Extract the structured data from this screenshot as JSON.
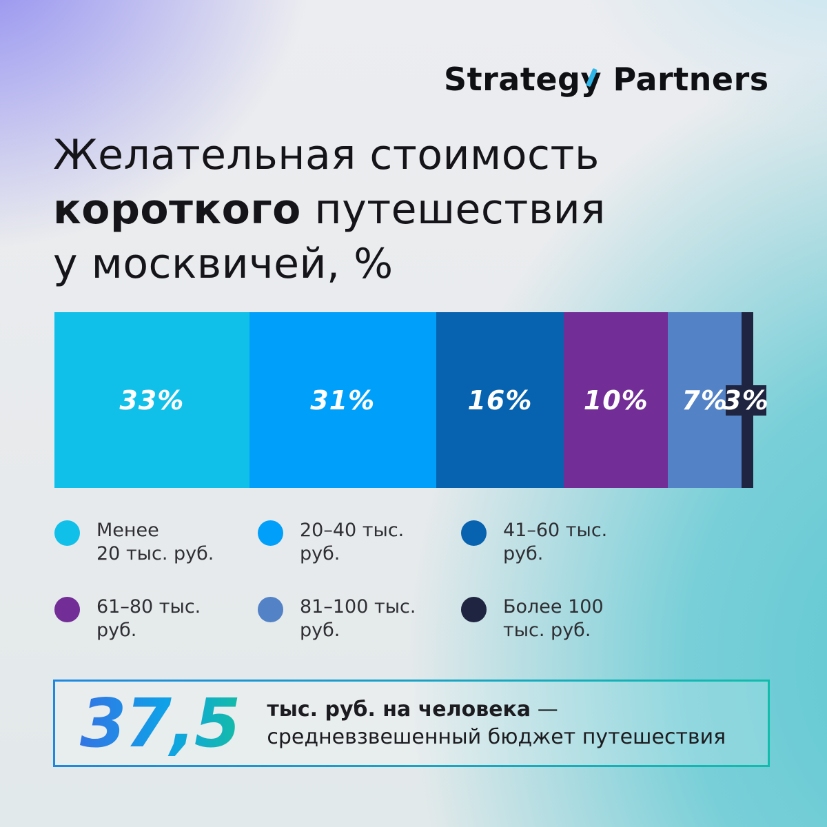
{
  "logo": {
    "part1": "Strateg",
    "part2": "y",
    "part3": " Partners",
    "accent_color": "#2FB6E8"
  },
  "title": {
    "line1": "Желательная стоимость",
    "line2_bold": "короткого",
    "line2_rest": " путешествия",
    "line3": "у москвичей, %"
  },
  "chart_data": {
    "type": "bar",
    "stacked": true,
    "orientation": "horizontal",
    "title": "Желательная стоимость короткого путешествия у москвичей, %",
    "unit": "%",
    "categories": [
      "Менее 20 тыс. руб.",
      "20–40 тыс. руб.",
      "41–60 тыс. руб.",
      "61–80 тыс. руб.",
      "81–100 тыс. руб.",
      "Более 100 тыс. руб."
    ],
    "values": [
      33,
      31,
      16,
      10,
      7,
      3
    ],
    "labels": [
      "33%",
      "31%",
      "16%",
      "10%",
      "7%",
      "3%"
    ],
    "colors": [
      "#11C0E8",
      "#00A0FA",
      "#0763AF",
      "#722D96",
      "#5383C6",
      "#1F2540"
    ],
    "label_color": "#FFFFFF",
    "legend_position": "below",
    "legend": [
      {
        "label": "Менее\n20 тыс. руб.",
        "color": "#11C0E8"
      },
      {
        "label": "20–40 тыс.\nруб.",
        "color": "#00A0FA"
      },
      {
        "label": "41–60 тыс.\nруб.",
        "color": "#0763AF"
      },
      {
        "label": "61–80 тыс.\nруб.",
        "color": "#722D96"
      },
      {
        "label": "81–100 тыс.\nруб.",
        "color": "#5383C6"
      },
      {
        "label": "Более 100\nтыс. руб.",
        "color": "#1F2540"
      }
    ]
  },
  "summary": {
    "value": "37,5",
    "label_bold": "тыс. руб. на человека",
    "label_dash": " —",
    "label_rest": "средневзвешенный бюджет путешествия"
  }
}
